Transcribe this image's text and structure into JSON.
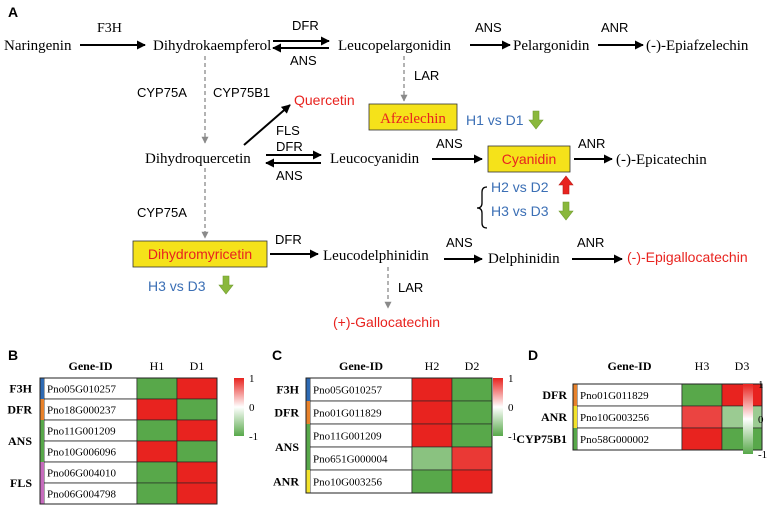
{
  "panel_labels": {
    "a": "A",
    "b": "B",
    "c": "C",
    "d": "D"
  },
  "pathway": {
    "compounds": {
      "naringenin": "Naringenin",
      "dihydrokaempferol": "Dihydrokaempferol",
      "leucopelargonidin": "Leucopelargonidin",
      "pelargonidin": "Pelargonidin",
      "epiafzelechin": "(-)-Epiafzelechin",
      "afzelechin": "Afzelechin",
      "quercetin": "Quercetin",
      "dihydroquercetin": "Dihydroquercetin",
      "leucocyanidin": "Leucocyanidin",
      "cyanidin": "Cyanidin",
      "epicatechin": "(-)-Epicatechin",
      "dihydromyricetin": "Dihydromyricetin",
      "leucodelphinidin": "Leucodelphinidin",
      "delphinidin": "Delphinidin",
      "epigallocatechin": "(-)-Epigallocatechin",
      "gallocatechin": "(+)-Gallocatechin"
    },
    "enzymes": {
      "f3h": "F3H",
      "dfr_1": "DFR",
      "ans_rev_1": "ANS",
      "ans_1": "ANS",
      "anr_1": "ANR",
      "cyp75a_1": "CYP75A",
      "cyp75b1": "CYP75B1",
      "lar_1": "LAR",
      "fls": "FLS",
      "dfr_2": "DFR",
      "ans_rev_2": "ANS",
      "ans_2": "ANS",
      "anr_2": "ANR",
      "cyp75a_2": "CYP75A",
      "dfr_3": "DFR",
      "ans_3": "ANS",
      "anr_3": "ANR",
      "lar_2": "LAR"
    },
    "comparisons": {
      "h1_d1": "H1 vs D1",
      "h2_d2": "H2 vs D2",
      "h3_d3_cyanidin": "H3 vs D3",
      "h3_d3_dihydromyricetin": "H3 vs D3"
    },
    "colors": {
      "highlight_box": "#f5e21a",
      "highlight_text": "#e8231f",
      "comparison_text": "#3b6fb5",
      "arrow_up": "#e8231f",
      "arrow_down": "#8ab83c"
    }
  },
  "heatmap_b": {
    "header": {
      "gene_id": "Gene-ID",
      "col1": "H1",
      "col2": "D1"
    },
    "groups": [
      {
        "label": "F3H",
        "color": "#2e6ab3"
      },
      {
        "label": "DFR",
        "color": "#e8822b"
      },
      {
        "label": "ANS",
        "color": "#58a84a"
      },
      {
        "label": "FLS",
        "color": "#c66bbd"
      }
    ],
    "genes": [
      "Pno05G010257",
      "Pno18G000237",
      "Pno11G001209",
      "Pno10G006096",
      "Pno06G004010",
      "Pno06G004798"
    ],
    "legend": {
      "max": "1",
      "mid": "0",
      "min": "-1"
    }
  },
  "heatmap_c": {
    "header": {
      "gene_id": "Gene-ID",
      "col1": "H2",
      "col2": "D2"
    },
    "groups": [
      {
        "label": "F3H",
        "color": "#2e6ab3"
      },
      {
        "label": "DFR",
        "color": "#e8822b"
      },
      {
        "label": "ANS",
        "color": "#58a84a"
      },
      {
        "label": "ANR",
        "color": "#f2e22b"
      }
    ],
    "genes": [
      "Pno05G010257",
      "Pno01G011829",
      "Pno11G001209",
      "Pno651G000004",
      "Pno10G003256"
    ],
    "legend": {
      "max": "1",
      "mid": "0",
      "min": "-1"
    }
  },
  "heatmap_d": {
    "header": {
      "gene_id": "Gene-ID",
      "col1": "H3",
      "col2": "D3"
    },
    "groups": [
      {
        "label": "DFR",
        "color": "#e8822b"
      },
      {
        "label": "ANR",
        "color": "#f2e22b"
      },
      {
        "label": "CYP75B1",
        "color": "#58a84a"
      }
    ],
    "genes": [
      "Pno01G011829",
      "Pno10G003256",
      "Pno58G000002"
    ],
    "legend": {
      "max": "1",
      "mid": "0",
      "min": "-1"
    }
  },
  "chart_data": [
    {
      "type": "heatmap",
      "x": [
        "H1",
        "D1"
      ],
      "y": [
        "Pno05G010257",
        "Pno18G000237",
        "Pno11G001209",
        "Pno10G006096",
        "Pno06G004010",
        "Pno06G004798"
      ],
      "values": [
        [
          -1,
          1
        ],
        [
          1,
          -1
        ],
        [
          -1,
          1
        ],
        [
          1,
          -1
        ],
        [
          -1,
          1
        ],
        [
          -1,
          1
        ]
      ],
      "colorbar": {
        "min": -1,
        "max": 1
      }
    },
    {
      "type": "heatmap",
      "x": [
        "H2",
        "D2"
      ],
      "y": [
        "Pno05G010257",
        "Pno01G011829",
        "Pno11G001209",
        "Pno651G000004",
        "Pno10G003256"
      ],
      "values": [
        [
          1,
          -1
        ],
        [
          1,
          -1
        ],
        [
          1,
          -1
        ],
        [
          -0.7,
          0.9
        ],
        [
          -1,
          1
        ]
      ],
      "colorbar": {
        "min": -1,
        "max": 1
      }
    },
    {
      "type": "heatmap",
      "x": [
        "H3",
        "D3"
      ],
      "y": [
        "Pno01G011829",
        "Pno10G003256",
        "Pno58G000002"
      ],
      "values": [
        [
          -1,
          1
        ],
        [
          0.85,
          -0.6
        ],
        [
          1,
          -1
        ]
      ],
      "colorbar": {
        "min": -1,
        "max": 1
      }
    }
  ]
}
